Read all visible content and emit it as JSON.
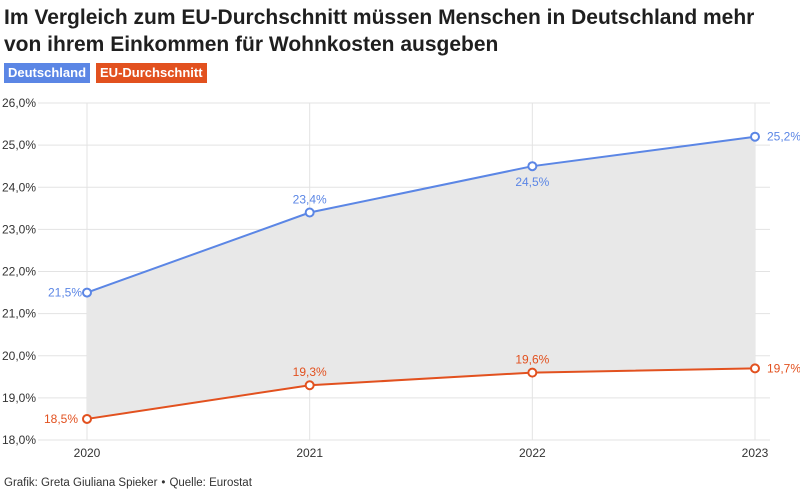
{
  "title": "Im Vergleich zum EU-Durchschnitt müssen Menschen in Deutschland mehr von ihrem Einkommen für Wohnkosten ausgeben",
  "footer": {
    "credit": "Grafik: Greta Giuliana Spieker",
    "separator": "•",
    "source": "Quelle: Eurostat"
  },
  "colors": {
    "deutschland": "#5b86e5",
    "eu": "#e2511f",
    "band": "#e8e8e8",
    "grid": "#e3e3e3"
  },
  "chart_data": {
    "type": "line",
    "x": [
      "2020",
      "2021",
      "2022",
      "2023"
    ],
    "series": [
      {
        "name": "Deutschland",
        "values": [
          21.5,
          23.4,
          24.5,
          25.2
        ],
        "labels": [
          "21,5%",
          "23,4%",
          "24,5%",
          "25,2%"
        ]
      },
      {
        "name": "EU-Durchschnitt",
        "values": [
          18.5,
          19.3,
          19.6,
          19.7
        ],
        "labels": [
          "18,5%",
          "19,3%",
          "19,6%",
          "19,7%"
        ]
      }
    ],
    "ylim": [
      18,
      26
    ],
    "yticks": [
      "18,0%",
      "19,0%",
      "20,0%",
      "21,0%",
      "22,0%",
      "23,0%",
      "24,0%",
      "25,0%",
      "26,0%"
    ],
    "legend_position": "top-left",
    "grid": true,
    "area_between_series": true
  }
}
